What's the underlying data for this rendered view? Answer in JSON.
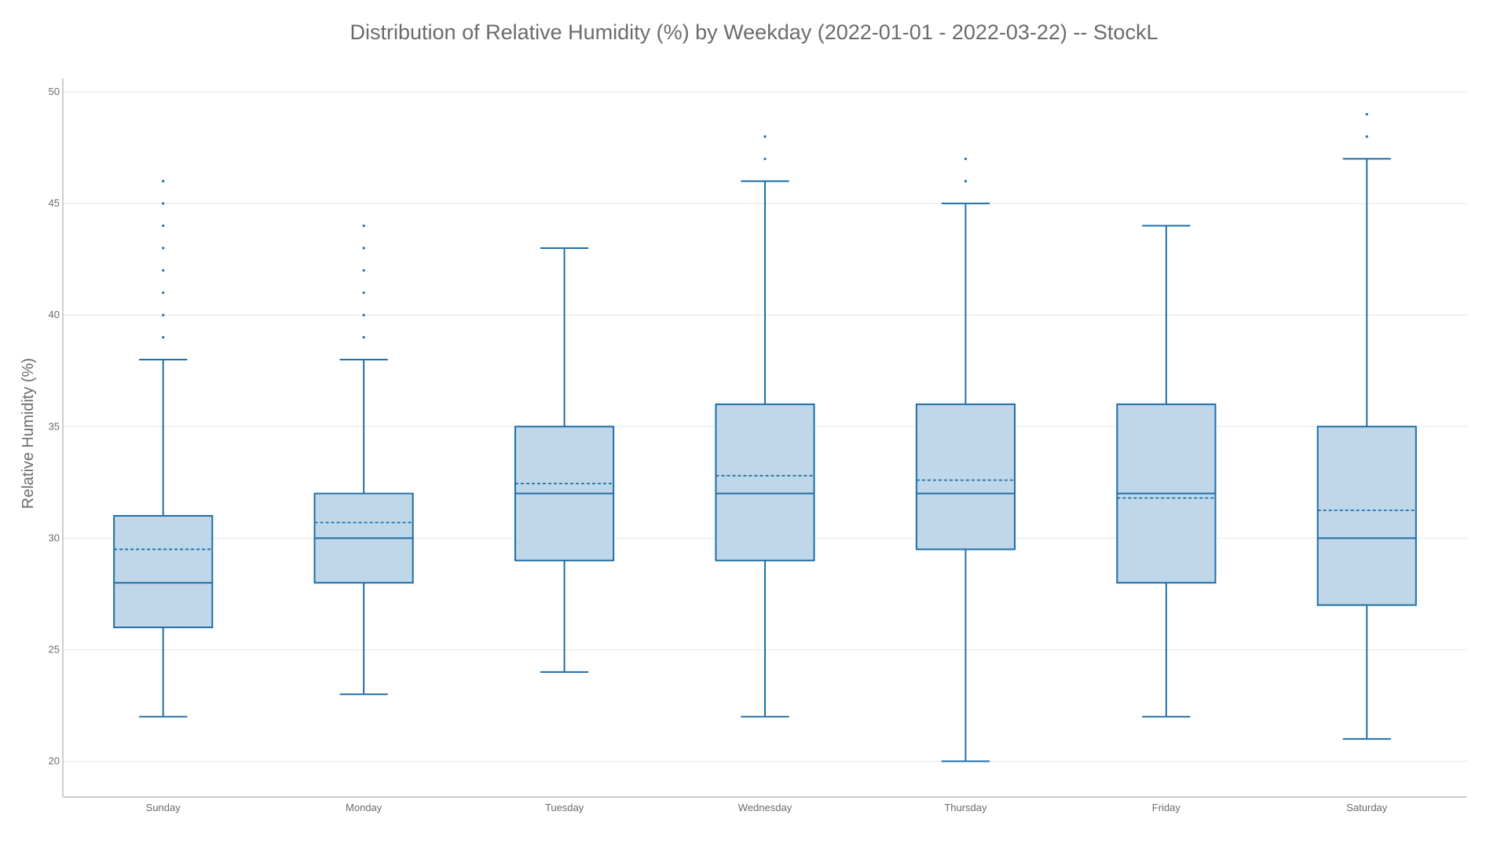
{
  "chart_data": {
    "type": "box",
    "title": "Distribution of Relative Humidity (%) by Weekday (2022-01-01 - 2022-03-22) -- StockL",
    "xlabel": "",
    "ylabel": "Relative Humidity (%)",
    "ylim": [
      18.4,
      50.6
    ],
    "yticks": [
      20,
      25,
      30,
      35,
      40,
      45,
      50
    ],
    "grid": true,
    "colors": {
      "box_fill": "#bfd7e8",
      "box_stroke": "#1f6fa8",
      "grid": "#e8e8e8",
      "axis": "#bfbfbf",
      "text": "#6b6b6b"
    },
    "categories": [
      "Sunday",
      "Monday",
      "Tuesday",
      "Wednesday",
      "Thursday",
      "Friday",
      "Saturday"
    ],
    "series": [
      {
        "boxes": [
          {
            "category": "Sunday",
            "q1": 26,
            "median": 28,
            "q3": 31,
            "mean": 29.5,
            "whisker_low": 22,
            "whisker_high": 38,
            "outliers": [
              39,
              40,
              41,
              42,
              43,
              44,
              45,
              46
            ]
          },
          {
            "category": "Monday",
            "q1": 28,
            "median": 30,
            "q3": 32,
            "mean": 30.7,
            "whisker_low": 23,
            "whisker_high": 38,
            "outliers": [
              39,
              40,
              41,
              42,
              43,
              44
            ]
          },
          {
            "category": "Tuesday",
            "q1": 29,
            "median": 32,
            "q3": 35,
            "mean": 32.45,
            "whisker_low": 24,
            "whisker_high": 43,
            "outliers": []
          },
          {
            "category": "Wednesday",
            "q1": 29,
            "median": 32,
            "q3": 36,
            "mean": 32.8,
            "whisker_low": 22,
            "whisker_high": 46,
            "outliers": [
              47,
              48
            ]
          },
          {
            "category": "Thursday",
            "q1": 29.5,
            "median": 32,
            "q3": 36,
            "mean": 32.6,
            "whisker_low": 20,
            "whisker_high": 45,
            "outliers": [
              46,
              47
            ]
          },
          {
            "category": "Friday",
            "q1": 28,
            "median": 32,
            "q3": 36,
            "mean": 31.8,
            "whisker_low": 22,
            "whisker_high": 44,
            "outliers": []
          },
          {
            "category": "Saturday",
            "q1": 27,
            "median": 30,
            "q3": 35,
            "mean": 31.25,
            "whisker_low": 21,
            "whisker_high": 47,
            "outliers": [
              48,
              49
            ]
          }
        ]
      }
    ]
  }
}
